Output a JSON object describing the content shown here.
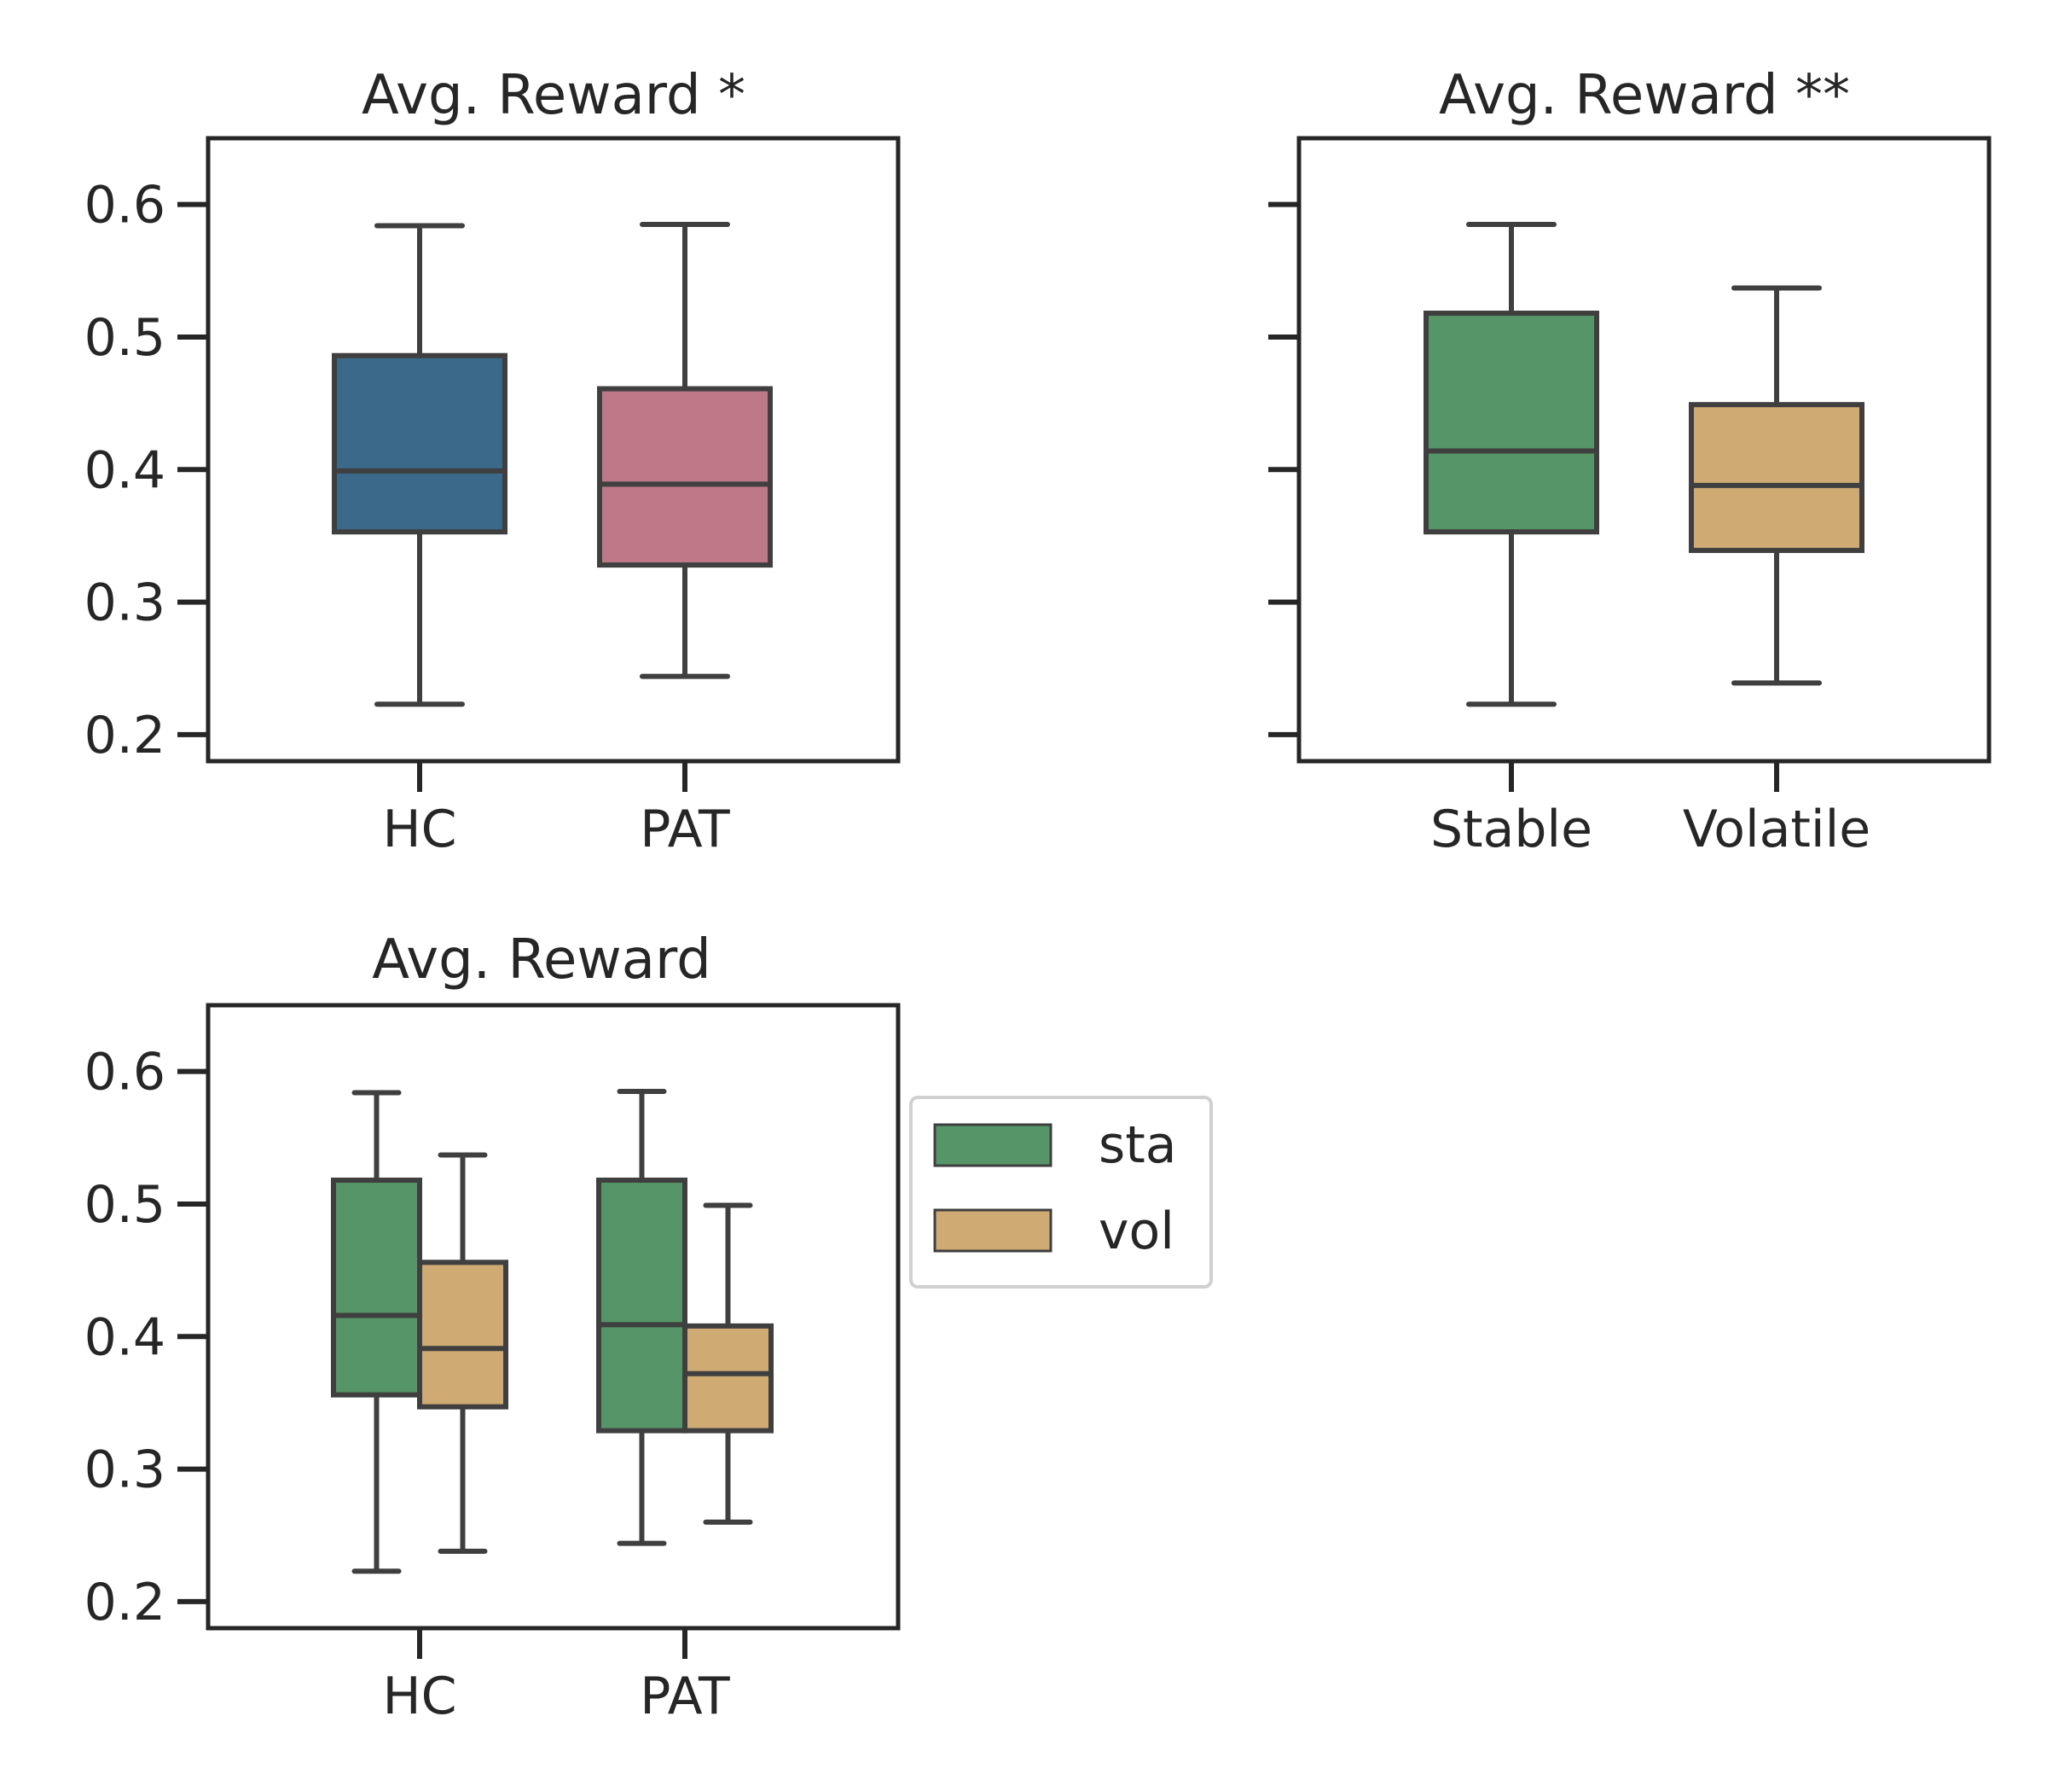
{
  "colors": {
    "hc": "#3a6989",
    "pat": "#be7888",
    "sta": "#569567",
    "vol": "#cfaa73",
    "box_edge": "#3f3f3f",
    "axes": "#262626",
    "legend_border": "#d0d0d0"
  },
  "chart_data": [
    {
      "type": "box",
      "title": "Avg. Reward *",
      "xlabel": "",
      "ylabel": "",
      "ylim": [
        0.18,
        0.65
      ],
      "yticks": [
        0.2,
        0.3,
        0.4,
        0.5,
        0.6
      ],
      "ytick_labels": [
        "0.2",
        "0.3",
        "0.4",
        "0.5",
        "0.6"
      ],
      "show_ytick_labels": true,
      "categories": [
        "HC",
        "PAT"
      ],
      "grid": false,
      "series": [
        {
          "color_key": "",
          "boxes": [
            {
              "category": "HC",
              "color": "#3a6989",
              "whisker_low": 0.223,
              "q1": 0.353,
              "median": 0.399,
              "q3": 0.486,
              "whisker_high": 0.584
            },
            {
              "category": "PAT",
              "color": "#be7888",
              "whisker_low": 0.244,
              "q1": 0.328,
              "median": 0.389,
              "q3": 0.461,
              "whisker_high": 0.585
            }
          ]
        }
      ]
    },
    {
      "type": "box",
      "title": "Avg. Reward **",
      "xlabel": "",
      "ylabel": "",
      "ylim": [
        0.18,
        0.65
      ],
      "yticks": [
        0.2,
        0.3,
        0.4,
        0.5,
        0.6
      ],
      "ytick_labels": [
        "",
        "",
        "",
        "",
        ""
      ],
      "show_ytick_labels": false,
      "categories": [
        "Stable",
        "Volatile"
      ],
      "grid": false,
      "series": [
        {
          "color_key": "",
          "boxes": [
            {
              "category": "Stable",
              "color": "#569567",
              "whisker_low": 0.223,
              "q1": 0.353,
              "median": 0.414,
              "q3": 0.518,
              "whisker_high": 0.585
            },
            {
              "category": "Volatile",
              "color": "#cfaa73",
              "whisker_low": 0.239,
              "q1": 0.339,
              "median": 0.388,
              "q3": 0.449,
              "whisker_high": 0.537
            }
          ]
        }
      ]
    },
    {
      "type": "box",
      "title": "Avg. Reward",
      "xlabel": "",
      "ylabel": "",
      "ylim": [
        0.18,
        0.65
      ],
      "yticks": [
        0.2,
        0.3,
        0.4,
        0.5,
        0.6
      ],
      "ytick_labels": [
        "0.2",
        "0.3",
        "0.4",
        "0.5",
        "0.6"
      ],
      "show_ytick_labels": true,
      "categories": [
        "HC",
        "PAT"
      ],
      "grid": false,
      "legend": {
        "placement": "outside-right",
        "entries": [
          "sta",
          "vol"
        ]
      },
      "series": [
        {
          "name": "sta",
          "color": "#569567",
          "boxes": [
            {
              "category": "HC",
              "whisker_low": 0.223,
              "q1": 0.356,
              "median": 0.416,
              "q3": 0.518,
              "whisker_high": 0.584
            },
            {
              "category": "PAT",
              "whisker_low": 0.244,
              "q1": 0.329,
              "median": 0.409,
              "q3": 0.518,
              "whisker_high": 0.585
            }
          ]
        },
        {
          "name": "vol",
          "color": "#cfaa73",
          "boxes": [
            {
              "category": "HC",
              "whisker_low": 0.238,
              "q1": 0.347,
              "median": 0.391,
              "q3": 0.456,
              "whisker_high": 0.537
            },
            {
              "category": "PAT",
              "whisker_low": 0.26,
              "q1": 0.329,
              "median": 0.372,
              "q3": 0.408,
              "whisker_high": 0.499
            }
          ]
        }
      ]
    }
  ]
}
